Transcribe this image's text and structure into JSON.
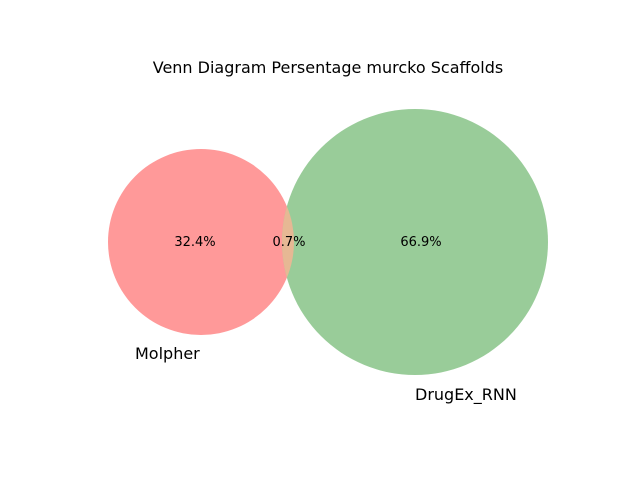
{
  "title": "Venn Diagram Persentage murcko Scaffolds",
  "sets": [
    {
      "name": "Molpher",
      "color": "#ff9999"
    },
    {
      "name": "DrugEx_RNN",
      "color": "#99cc99"
    }
  ],
  "regions": {
    "only_a": "32.4%",
    "overlap": "0.7%",
    "only_b": "66.9%"
  },
  "overlap_color": "#e6b894"
}
